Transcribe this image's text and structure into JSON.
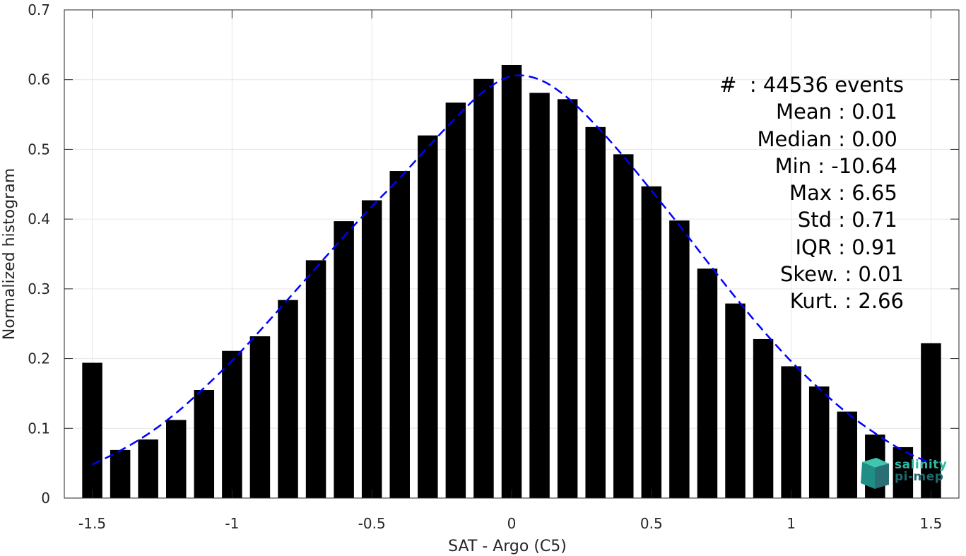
{
  "chart_data": {
    "type": "bar",
    "xlabel": "SAT - Argo (C5)",
    "ylabel": "Normalized histogram",
    "xlim": [
      -1.6,
      1.6
    ],
    "ylim": [
      0,
      0.7
    ],
    "xticks": [
      -1.5,
      -1,
      -0.5,
      0,
      0.5,
      1,
      1.5
    ],
    "xtick_labels": [
      "-1.5",
      "-1",
      "-0.5",
      "0",
      "0.5",
      "1",
      "1.5"
    ],
    "yticks": [
      0,
      0.1,
      0.2,
      0.3,
      0.4,
      0.5,
      0.6,
      0.7
    ],
    "ytick_labels": [
      "0",
      "0.1",
      "0.2",
      "0.3",
      "0.4",
      "0.5",
      "0.6",
      "0.7"
    ],
    "grid": true,
    "bar_color": "#000000",
    "bar_width": 0.072,
    "bars": {
      "x": [
        -1.5,
        -1.4,
        -1.3,
        -1.2,
        -1.1,
        -1.0,
        -0.9,
        -0.8,
        -0.7,
        -0.6,
        -0.5,
        -0.4,
        -0.3,
        -0.2,
        -0.1,
        0.0,
        0.1,
        0.2,
        0.3,
        0.4,
        0.5,
        0.6,
        0.7,
        0.8,
        0.9,
        1.0,
        1.1,
        1.2,
        1.3,
        1.4,
        1.5
      ],
      "values": [
        0.194,
        0.069,
        0.084,
        0.112,
        0.155,
        0.211,
        0.232,
        0.284,
        0.341,
        0.397,
        0.427,
        0.469,
        0.52,
        0.567,
        0.601,
        0.621,
        0.581,
        0.572,
        0.532,
        0.493,
        0.447,
        0.398,
        0.329,
        0.279,
        0.228,
        0.189,
        0.16,
        0.124,
        0.091,
        0.073,
        0.222
      ]
    },
    "fit_curve": {
      "style": "dashed",
      "color": "#0000ff",
      "x": [
        -1.5,
        -1.4,
        -1.3,
        -1.2,
        -1.1,
        -1.0,
        -0.9,
        -0.8,
        -0.7,
        -0.6,
        -0.5,
        -0.4,
        -0.3,
        -0.2,
        -0.1,
        0.0,
        0.1,
        0.2,
        0.3,
        0.4,
        0.5,
        0.6,
        0.7,
        0.8,
        0.9,
        1.0,
        1.1,
        1.2,
        1.3,
        1.4,
        1.5
      ],
      "y": [
        0.048,
        0.068,
        0.092,
        0.122,
        0.158,
        0.197,
        0.24,
        0.285,
        0.33,
        0.375,
        0.418,
        0.459,
        0.503,
        0.545,
        0.583,
        0.605,
        0.6,
        0.574,
        0.535,
        0.49,
        0.441,
        0.391,
        0.339,
        0.288,
        0.24,
        0.196,
        0.157,
        0.122,
        0.093,
        0.068,
        0.05
      ]
    },
    "annotations": [
      {
        "label": "#  : 44536 events"
      },
      {
        "label": "Mean : 0.01 "
      },
      {
        "label": "Median : 0.00 "
      },
      {
        "label": "Min : -10.64 "
      },
      {
        "label": "Max : 6.65 "
      },
      {
        "label": "Std : 0.71 "
      },
      {
        "label": "IQR : 0.91 "
      },
      {
        "label": "Skew. : 0.01"
      },
      {
        "label": "Kurt. : 2.66"
      }
    ]
  },
  "logo": {
    "line1": "salinity",
    "line2": "pi-mep"
  }
}
